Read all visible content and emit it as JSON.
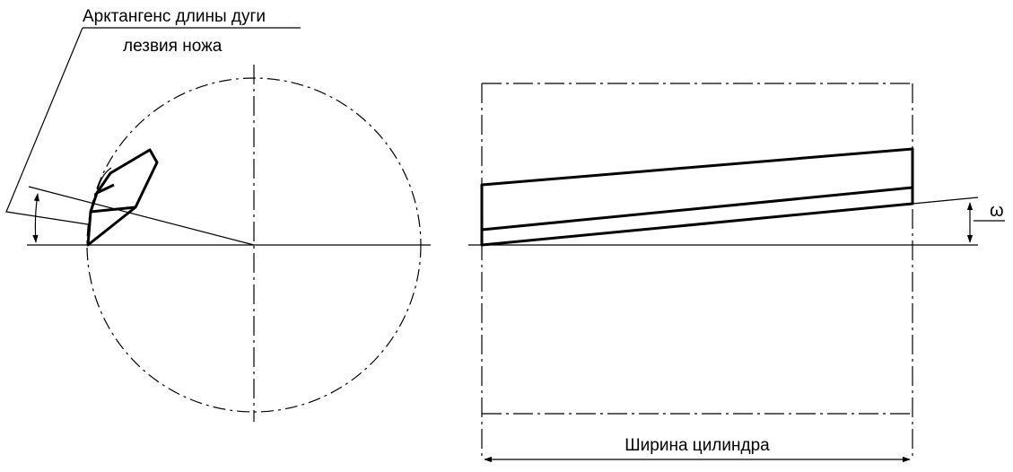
{
  "labels": {
    "arc_callout_line1": "Арктангенс длины дуги",
    "arc_callout_line2": "лезвия ножа",
    "cylinder_width": "Ширина цилиндра",
    "angle_symbol": "ω"
  }
}
